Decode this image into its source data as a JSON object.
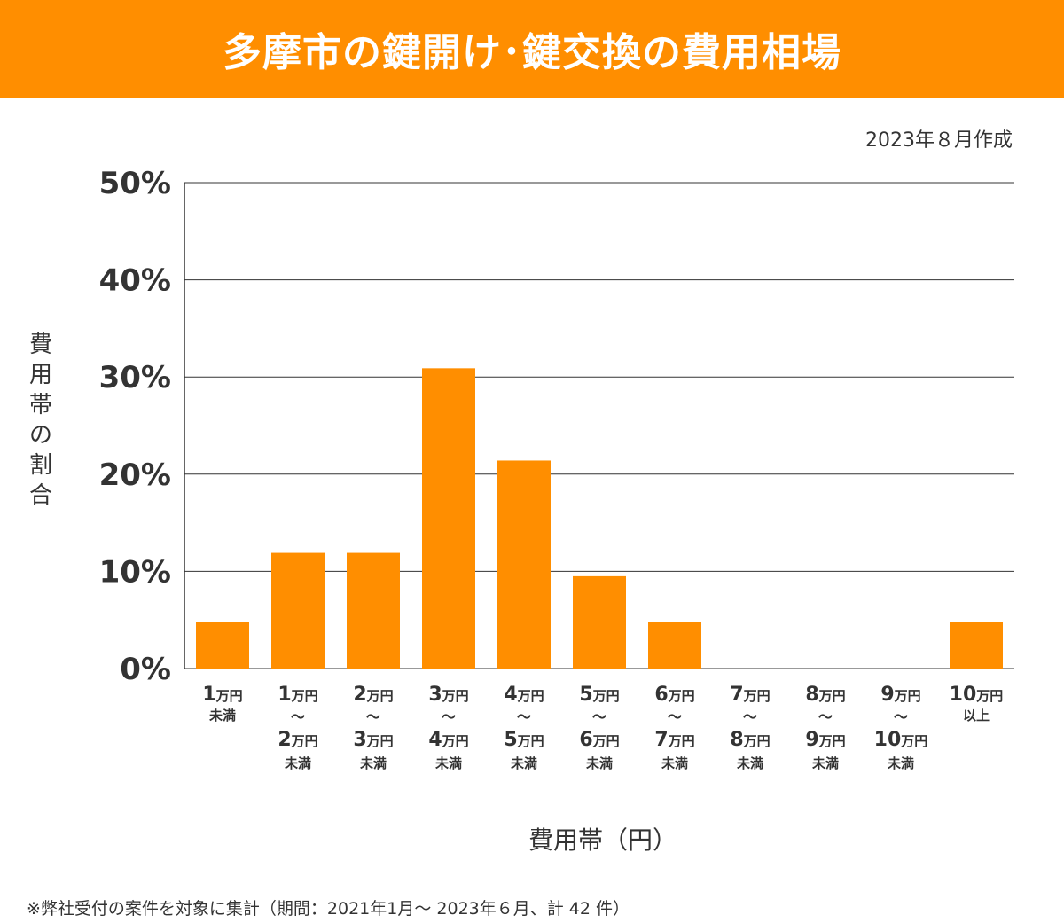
{
  "header": {
    "title": "多摩市の鍵開け･鍵交換の費用相場"
  },
  "meta": {
    "created": "2023年８月作成"
  },
  "colors": {
    "accent": "#FF8E00",
    "bar": "#FF8E00",
    "text": "#333333",
    "grid": "#333333"
  },
  "axis_label_vertical": [
    "費",
    "用",
    "帯",
    "の",
    "割",
    "合"
  ],
  "chart_data": {
    "type": "bar",
    "title": "多摩市の鍵開け･鍵交換の費用相場",
    "xlabel": "費用帯（円）",
    "ylabel": "費用帯の割合",
    "ylim": [
      0,
      50
    ],
    "yticks": [
      "0%",
      "10%",
      "20%",
      "30%",
      "40%",
      "50%"
    ],
    "categories": [
      {
        "lines": [
          [
            "1",
            "万円"
          ],
          [
            "未満"
          ]
        ]
      },
      {
        "lines": [
          [
            "1",
            "万円"
          ],
          [
            "～"
          ],
          [
            "2",
            "万円"
          ],
          [
            "未満"
          ]
        ]
      },
      {
        "lines": [
          [
            "2",
            "万円"
          ],
          [
            "～"
          ],
          [
            "3",
            "万円"
          ],
          [
            "未満"
          ]
        ]
      },
      {
        "lines": [
          [
            "3",
            "万円"
          ],
          [
            "～"
          ],
          [
            "4",
            "万円"
          ],
          [
            "未満"
          ]
        ]
      },
      {
        "lines": [
          [
            "4",
            "万円"
          ],
          [
            "～"
          ],
          [
            "5",
            "万円"
          ],
          [
            "未満"
          ]
        ]
      },
      {
        "lines": [
          [
            "5",
            "万円"
          ],
          [
            "～"
          ],
          [
            "6",
            "万円"
          ],
          [
            "未満"
          ]
        ]
      },
      {
        "lines": [
          [
            "6",
            "万円"
          ],
          [
            "～"
          ],
          [
            "7",
            "万円"
          ],
          [
            "未満"
          ]
        ]
      },
      {
        "lines": [
          [
            "7",
            "万円"
          ],
          [
            "～"
          ],
          [
            "8",
            "万円"
          ],
          [
            "未満"
          ]
        ]
      },
      {
        "lines": [
          [
            "8",
            "万円"
          ],
          [
            "～"
          ],
          [
            "9",
            "万円"
          ],
          [
            "未満"
          ]
        ]
      },
      {
        "lines": [
          [
            "9",
            "万円"
          ],
          [
            "～"
          ],
          [
            "10",
            "万円"
          ],
          [
            "未満"
          ]
        ]
      },
      {
        "lines": [
          [
            "10",
            "万円"
          ],
          [
            "以上"
          ]
        ]
      }
    ],
    "values": [
      4.8,
      11.9,
      11.9,
      30.9,
      21.4,
      9.5,
      4.8,
      0,
      0,
      0,
      4.8
    ]
  },
  "footnote": "※弊社受付の案件を対象に集計（期間：2021年1月～ 2023年６月、計 42 件）"
}
